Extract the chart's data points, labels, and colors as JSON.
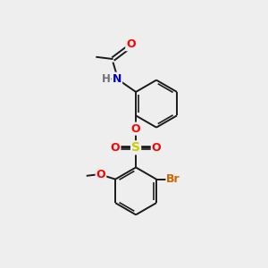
{
  "background_color": "#eeeeee",
  "bond_color": "#1a1a1a",
  "bond_width": 1.4,
  "atom_colors": {
    "O": "#ff0000",
    "N": "#0000cc",
    "S": "#cccc00",
    "Br": "#cc6600",
    "C": "#1a1a1a",
    "H": "#707070"
  },
  "font_size": 8.5
}
